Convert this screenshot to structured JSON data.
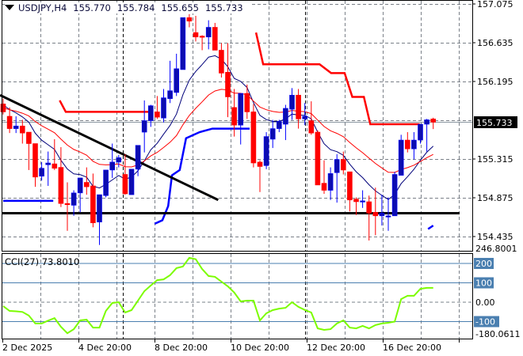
{
  "header": {
    "symbol": "USDJPY,H4",
    "open": "155.770",
    "high": "155.784",
    "low": "155.655",
    "close": "155.733"
  },
  "cci_panel": {
    "label": "CCI(27)",
    "value": "73.8010",
    "max_label": "246.8001",
    "min_label": "-180.0611",
    "level_labels": [
      "200",
      "100",
      "0.00",
      "-100"
    ]
  },
  "colors": {
    "bull": "#0c0cb0",
    "bull_wick": "#0000ff",
    "bear": "#ff0000",
    "ma_fast": "#00007a",
    "ma_slow": "#ff0000",
    "stop_red": "#ff0000",
    "stop_blue": "#0000ff",
    "cci_line": "#7cfc00",
    "cci_levels": "#4a7fb0"
  },
  "chart_data": [
    {
      "type": "candlestick",
      "title": "USDJPY,H4",
      "price_ticks": [
        "157.075",
        "156.635",
        "156.195",
        "155.315",
        "154.875",
        "154.435"
      ],
      "ylim": [
        154.33,
        157.12
      ],
      "current_price": "155.733",
      "x_tick_labels": [
        "2 Dec 2025",
        "4 Dec 20:00",
        "8 Dec 20:00",
        "10 Dec 20:00",
        "12 Dec 20:00",
        "16 Dec 20:00"
      ],
      "grid": true,
      "ohlc": [
        [
          155.94,
          156.0,
          155.82,
          155.85
        ],
        [
          155.8,
          155.9,
          155.61,
          155.66
        ],
        [
          155.66,
          155.8,
          155.61,
          155.69
        ],
        [
          155.69,
          155.76,
          155.49,
          155.61
        ],
        [
          155.62,
          155.62,
          155.19,
          155.49
        ],
        [
          155.49,
          155.49,
          155.0,
          155.11
        ],
        [
          155.12,
          155.28,
          155.07,
          155.21
        ],
        [
          155.25,
          155.4,
          155.01,
          155.27
        ],
        [
          155.26,
          155.54,
          155.19,
          155.21
        ],
        [
          155.22,
          155.45,
          154.77,
          154.81
        ],
        [
          154.81,
          155.05,
          154.5,
          154.8
        ],
        [
          154.79,
          154.96,
          154.67,
          154.93
        ],
        [
          154.93,
          155.1,
          154.71,
          155.1
        ],
        [
          155.05,
          155.22,
          154.91,
          155.0
        ],
        [
          155.01,
          155.15,
          154.54,
          154.59
        ],
        [
          154.6,
          154.91,
          154.34,
          154.91
        ],
        [
          154.9,
          155.19,
          154.88,
          155.19
        ],
        [
          155.19,
          155.49,
          155.1,
          155.28
        ],
        [
          155.28,
          155.36,
          155.22,
          155.33
        ],
        [
          155.14,
          155.37,
          154.91,
          154.92
        ],
        [
          154.91,
          155.2,
          154.91,
          155.2
        ],
        [
          155.2,
          155.47,
          155.12,
          155.47
        ],
        [
          155.62,
          155.98,
          155.39,
          155.75
        ],
        [
          155.75,
          155.93,
          155.68,
          155.92
        ],
        [
          155.85,
          156.03,
          155.77,
          155.79
        ],
        [
          155.78,
          156.11,
          155.73,
          156.01
        ],
        [
          156.0,
          156.43,
          155.95,
          156.09
        ],
        [
          156.07,
          156.51,
          156.03,
          156.34
        ],
        [
          156.33,
          156.92,
          156.33,
          156.92
        ],
        [
          156.92,
          156.96,
          156.81,
          156.88
        ],
        [
          156.75,
          156.94,
          156.65,
          156.7
        ],
        [
          156.71,
          156.72,
          156.55,
          156.7
        ],
        [
          156.7,
          156.89,
          156.56,
          156.81
        ],
        [
          156.81,
          156.86,
          156.55,
          156.55
        ],
        [
          156.55,
          156.63,
          156.24,
          156.29
        ],
        [
          156.3,
          156.63,
          155.79,
          156.02
        ],
        [
          155.9,
          156.11,
          155.57,
          155.7
        ],
        [
          155.7,
          156.06,
          155.48,
          156.06
        ],
        [
          156.06,
          156.16,
          155.77,
          155.85
        ],
        [
          155.85,
          155.94,
          155.22,
          155.27
        ],
        [
          155.28,
          155.3,
          154.94,
          155.23
        ],
        [
          155.24,
          155.62,
          155.2,
          155.57
        ],
        [
          155.54,
          155.76,
          155.44,
          155.66
        ],
        [
          155.66,
          155.76,
          155.62,
          155.74
        ],
        [
          155.71,
          155.93,
          155.53,
          155.89
        ],
        [
          155.88,
          156.12,
          155.76,
          156.04
        ],
        [
          156.04,
          156.11,
          155.66,
          155.77
        ],
        [
          155.77,
          155.95,
          155.7,
          155.8
        ],
        [
          155.75,
          155.97,
          155.59,
          155.61
        ],
        [
          155.62,
          155.64,
          155.02,
          155.02
        ],
        [
          155.04,
          155.3,
          154.92,
          154.96
        ],
        [
          154.96,
          155.22,
          154.85,
          155.15
        ],
        [
          155.16,
          155.37,
          154.82,
          155.31
        ],
        [
          155.31,
          155.4,
          155.14,
          155.19
        ],
        [
          155.17,
          155.17,
          154.72,
          154.85
        ],
        [
          154.86,
          154.88,
          154.68,
          154.83
        ],
        [
          154.84,
          154.96,
          154.76,
          154.84
        ],
        [
          154.83,
          154.9,
          154.39,
          154.7
        ],
        [
          154.71,
          154.99,
          154.45,
          154.67
        ],
        [
          154.67,
          154.91,
          154.56,
          154.7
        ],
        [
          154.67,
          154.88,
          154.5,
          154.67
        ],
        [
          154.67,
          155.17,
          154.67,
          155.14
        ],
        [
          155.13,
          155.59,
          155.13,
          155.53
        ],
        [
          155.53,
          155.62,
          155.39,
          155.43
        ],
        [
          155.43,
          155.62,
          155.31,
          155.53
        ],
        [
          155.53,
          155.71,
          155.49,
          155.71
        ],
        [
          155.71,
          155.77,
          155.4,
          155.76
        ],
        [
          155.77,
          155.784,
          155.655,
          155.733
        ]
      ],
      "support_level": 154.7,
      "trendline": [
        [
          0,
          156.04
        ],
        [
          33.5,
          154.85
        ]
      ],
      "stop_line_red": [
        [
          8.8,
          155.98
        ],
        [
          9.75,
          155.85
        ],
        [
          22.6,
          155.85
        ],
        null,
        [
          39.4,
          156.75
        ],
        [
          40.5,
          156.39
        ],
        [
          49.3,
          156.39
        ],
        [
          51.1,
          156.29
        ],
        [
          53.2,
          156.29
        ],
        [
          54.4,
          156.02
        ],
        [
          56.2,
          156.02
        ],
        [
          57.2,
          155.71
        ],
        [
          64.9,
          155.71
        ]
      ],
      "stop_line_blue": [
        [
          0,
          154.84
        ],
        [
          7.8,
          154.84
        ],
        null,
        [
          23.6,
          154.58
        ],
        [
          24.8,
          154.62
        ],
        [
          25.7,
          154.78
        ],
        [
          26.3,
          155.13
        ],
        [
          27.5,
          155.19
        ],
        [
          28.5,
          155.55
        ],
        [
          30.6,
          155.62
        ],
        [
          32.6,
          155.66
        ],
        [
          38.4,
          155.66
        ],
        null,
        [
          66.2,
          154.52
        ],
        [
          67,
          154.56
        ]
      ]
    },
    {
      "type": "line",
      "title": "CCI(27)",
      "ylim": [
        -180.0611,
        246.8001
      ],
      "levels": [
        200,
        100,
        0,
        -100
      ],
      "values": [
        -20,
        -45,
        -47,
        -50,
        -69,
        -110,
        -110,
        -95,
        -82,
        -127,
        -160,
        -139,
        -94,
        -90,
        -131,
        -131,
        -45,
        -4,
        0,
        -53,
        -41,
        8,
        57,
        86,
        114,
        118,
        139,
        176,
        184,
        229,
        222,
        171,
        135,
        131,
        106,
        82,
        50,
        4,
        8,
        8,
        -94,
        -57,
        -41,
        -33,
        -29,
        0,
        -24,
        -40,
        -53,
        -135,
        -143,
        -139,
        -110,
        -94,
        -131,
        -135,
        -122,
        -135,
        -118,
        -110,
        -106,
        -100,
        16,
        33,
        33,
        69,
        74,
        73.801
      ]
    }
  ]
}
